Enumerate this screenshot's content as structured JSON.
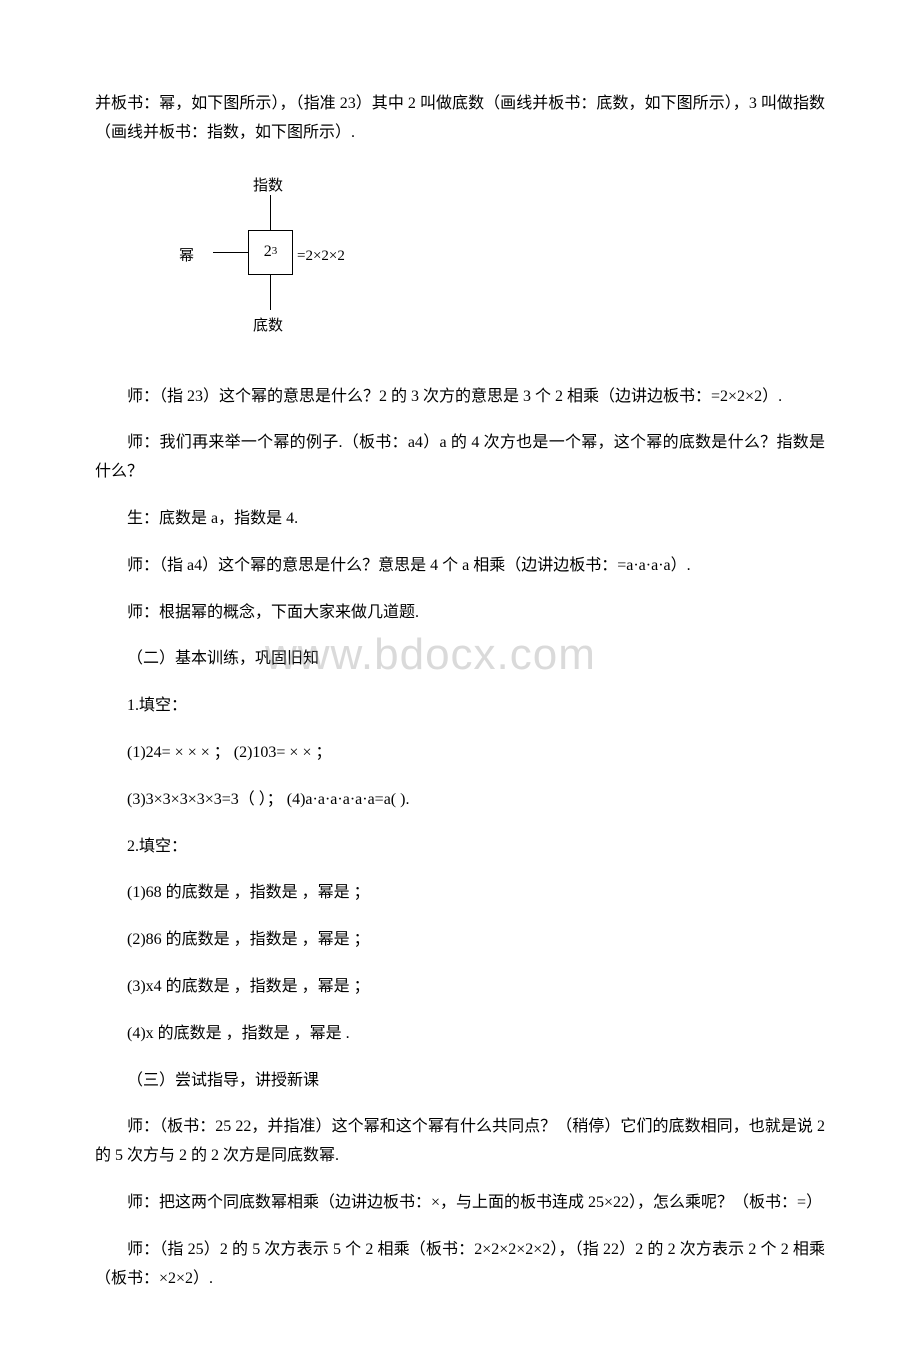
{
  "para1": "并板书：幂，如下图所示），（指准 23）其中 2 叫做底数（画线并板书：底数，如下图所示），3 叫做指数（画线并板书：指数，如下图所示）.",
  "diagram": {
    "topLabel": "指数",
    "leftLabel": "幂",
    "centerBase": "2",
    "centerExponent": "3",
    "equalsText": "=2×2×2",
    "bottomLabel": "底数"
  },
  "para2": "师：（指 23）这个幂的意思是什么？2 的 3 次方的意思是 3 个 2 相乘（边讲边板书：=2×2×2）.",
  "para3": "师：我们再来举一个幂的例子.（板书：a4）a 的 4 次方也是一个幂，这个幂的底数是什么？指数是什么？",
  "para4": "生：底数是 a，指数是 4.",
  "para5": "师：（指 a4）这个幂的意思是什么？意思是 4 个 a 相乘（边讲边板书：=a·a·a·a）.",
  "para6": "师：根据幂的概念，下面大家来做几道题.",
  "para7": "（二）基本训练，巩固旧知",
  "para8": "1.填空：",
  "para9": "(1)24= × × × ；  (2)103= × × ；",
  "para10": "(3)3×3×3×3×3=3（ ）；  (4)a·a·a·a·a·a=a(  ).",
  "para11": "2.填空：",
  "para12": "(1)68 的底数是 ，指数是 ，幂是 ；",
  "para13": "(2)86 的底数是 ，指数是 ，幂是 ；",
  "para14": "(3)x4 的底数是 ，指数是 ，幂是 ；",
  "para15": "(4)x 的底数是 ，指数是 ，幂是  .",
  "para16": "（三）尝试指导，讲授新课",
  "para17": "师：（板书：25 22，并指准）这个幂和这个幂有什么共同点？（稍停）它们的底数相同，也就是说 2 的 5 次方与 2 的 2 次方是同底数幂.",
  "para18": "师：把这两个同底数幂相乘（边讲边板书：×，与上面的板书连成 25×22），怎么乘呢？（板书：=）",
  "para19": "师：（指 25）2 的 5 次方表示 5 个 2 相乘（板书：2×2×2×2×2），（指 22）2 的 2 次方表示 2 个 2 相乘（板书：×2×2）.",
  "watermark": "www.bdocx.com"
}
